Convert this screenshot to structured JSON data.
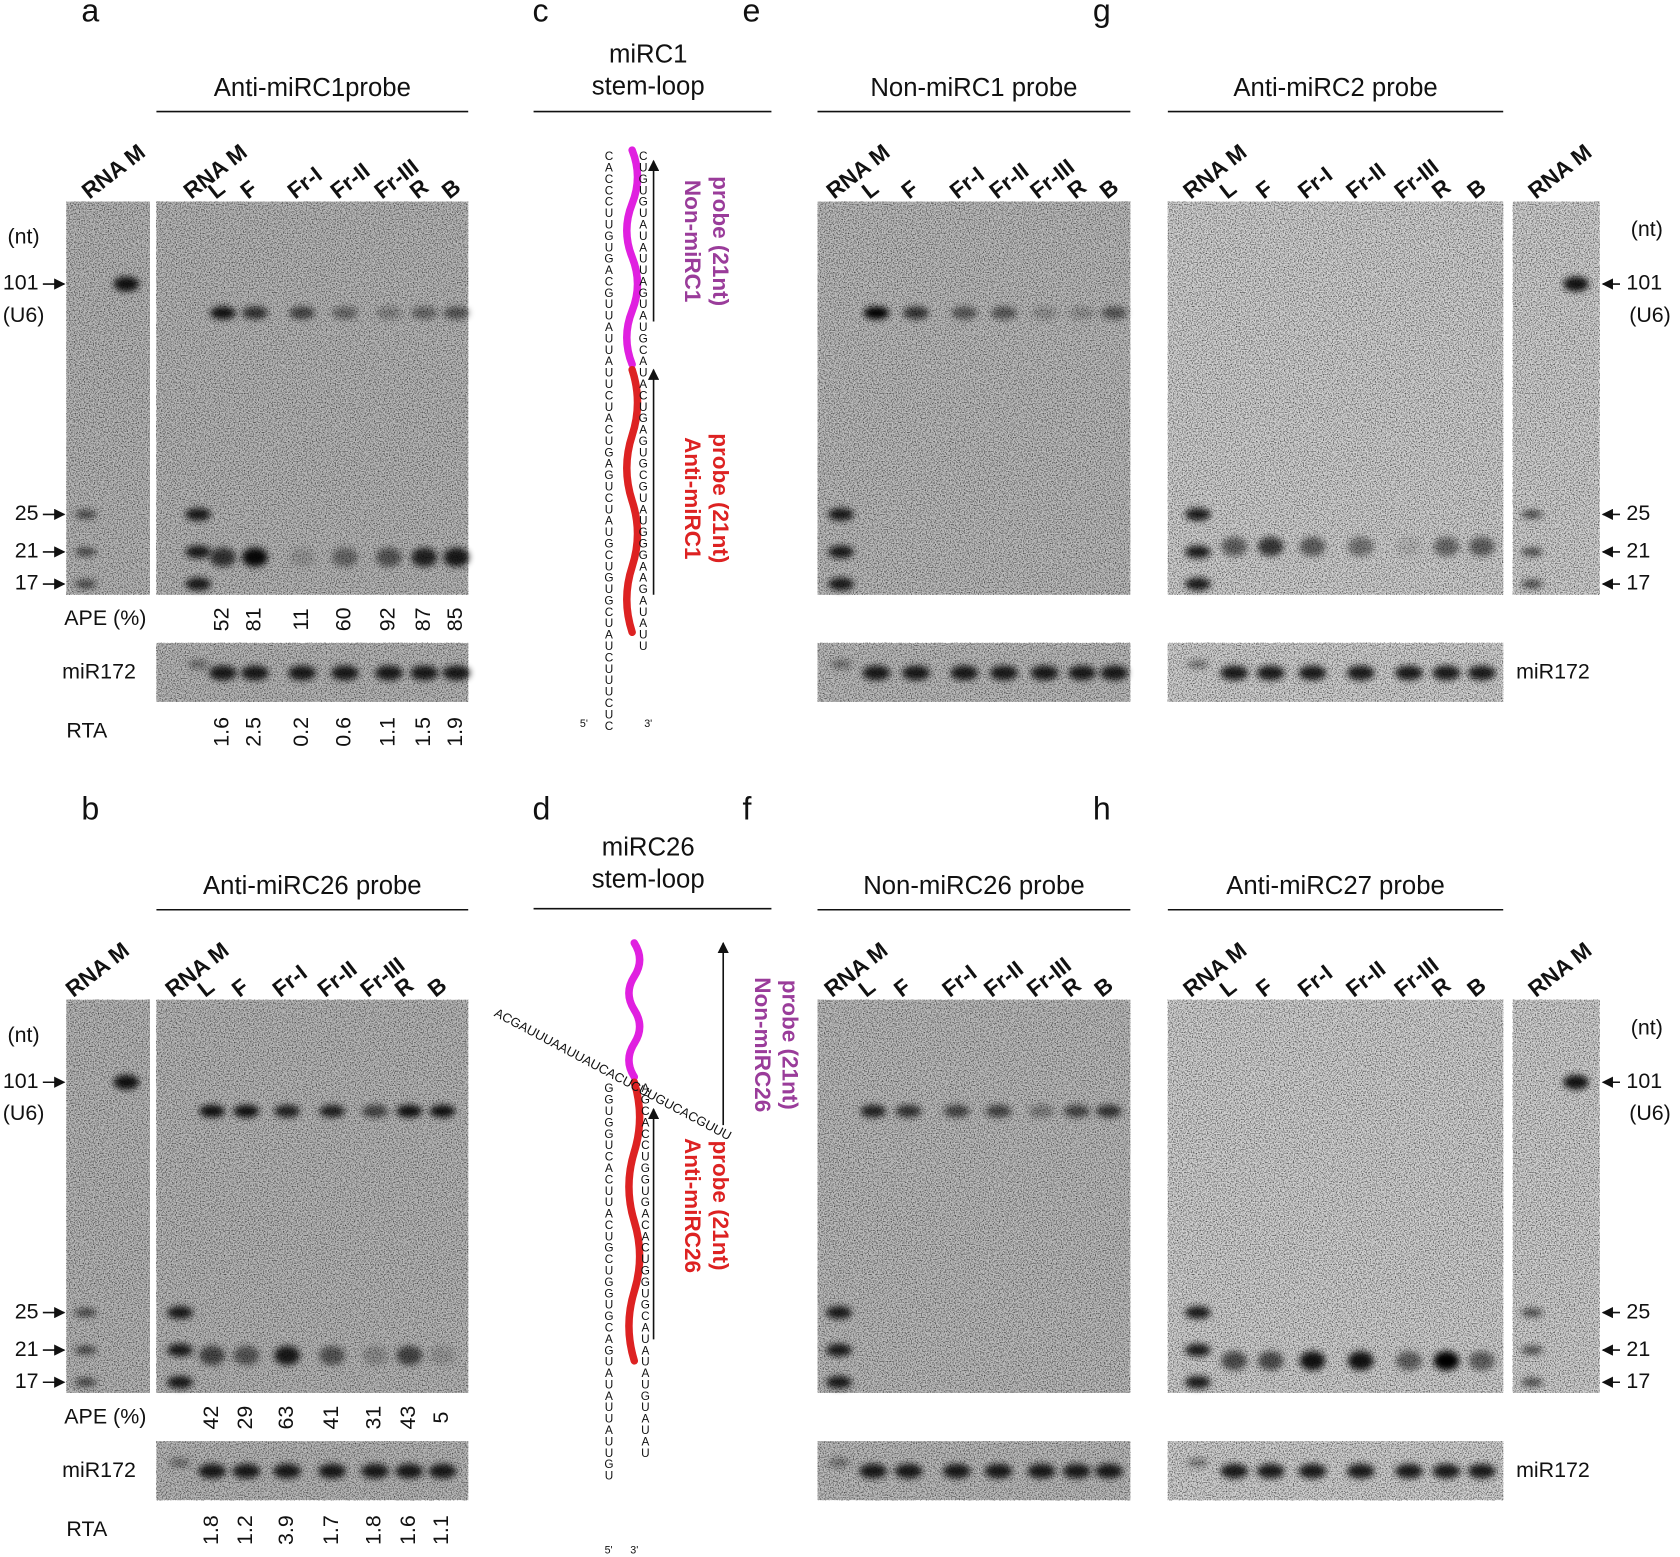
{
  "blots": {
    "a": {
      "label": "a",
      "title": "Anti-miRC1probe",
      "marker_lane": "RNA M",
      "lanes": [
        "RNA M",
        "L",
        "F",
        "Fr-I",
        "Fr-II",
        "Fr-III",
        "R",
        "B"
      ],
      "unit": "(nt)",
      "sizes": [
        101,
        25,
        21,
        17
      ],
      "u6": "(U6)",
      "ape_label": "APE (%)",
      "ape": [
        52,
        81,
        11,
        60,
        92,
        87,
        85
      ],
      "loading": "miR172",
      "rta_label": "RTA",
      "rta": [
        1.6,
        2.5,
        0.2,
        0.6,
        1.1,
        1.5,
        1.9
      ]
    },
    "b": {
      "label": "b",
      "title": "Anti-miRC26 probe",
      "marker_lane": "RNA M",
      "lanes": [
        "RNA M",
        "L",
        "F",
        "Fr-I",
        "Fr-II",
        "Fr-III",
        "R",
        "B"
      ],
      "unit": "(nt)",
      "sizes": [
        101,
        25,
        21,
        17
      ],
      "u6": "(U6)",
      "ape_label": "APE (%)",
      "ape": [
        42,
        29,
        63,
        41,
        31,
        43,
        5
      ],
      "loading": "miR172",
      "rta_label": "RTA",
      "rta": [
        1.8,
        1.2,
        3.9,
        1.7,
        1.8,
        1.6,
        1.1
      ]
    },
    "e": {
      "label": "e",
      "title": "Non-miRC1 probe",
      "lanes": [
        "RNA M",
        "L",
        "F",
        "Fr-I",
        "Fr-II",
        "Fr-III",
        "R",
        "B"
      ]
    },
    "f": {
      "label": "f",
      "title": "Non-miRC26 probe",
      "lanes": [
        "RNA M",
        "L",
        "F",
        "Fr-I",
        "Fr-II",
        "Fr-III",
        "R",
        "B"
      ]
    },
    "g": {
      "label": "g",
      "title": "Anti-miRC2 probe",
      "marker_lane": "RNA M",
      "lanes": [
        "RNA M",
        "L",
        "F",
        "Fr-I",
        "Fr-II",
        "Fr-III",
        "R",
        "B"
      ],
      "unit": "(nt)",
      "sizes": [
        101,
        25,
        21,
        17
      ],
      "u6": "(U6)",
      "loading": "miR172"
    },
    "h": {
      "label": "h",
      "title": "Anti-miRC27 probe",
      "marker_lane": "RNA M",
      "lanes": [
        "RNA M",
        "L",
        "F",
        "Fr-I",
        "Fr-II",
        "Fr-III",
        "R",
        "B"
      ],
      "unit": "(nt)",
      "sizes": [
        101,
        25,
        21,
        17
      ],
      "u6": "(U6)",
      "loading": "miR172"
    }
  },
  "structures": {
    "c": {
      "label": "c",
      "title": [
        "miRC1",
        "stem-loop"
      ],
      "probes": [
        [
          "Non-miRC1",
          "probe (21nt)"
        ],
        [
          "Anti-miRC1",
          "probe (21nt)"
        ]
      ],
      "strands": [
        "CACCCUUGUGACGUUAUUAUUCUACUGAGUCUAUGCUGUGCUAUCUUUCUC",
        "CUGUGUAUAUUAGUAUGCAUACUGAGUGCGUAUGGGAAGAUAUU"
      ],
      "ends": [
        "5'",
        "3'"
      ]
    },
    "d": {
      "label": "d",
      "title": [
        "miRC26",
        "stem-loop"
      ],
      "probes": [
        [
          "Non-miRC26",
          "probe (21nt)"
        ],
        [
          "Anti-miRC26",
          "probe (21nt)"
        ]
      ],
      "loop": "ACGAUUUAAUUAUCACUCUUGUCACGUUU",
      "strands": [
        "GGUGGUCACUUACUGCUGGUGCAGUAUAUUAUUGU",
        "AGCACCUGGUGACACUGGUGCAUAUAUGUAUAU"
      ],
      "ends": [
        "5'",
        "3'"
      ]
    }
  }
}
